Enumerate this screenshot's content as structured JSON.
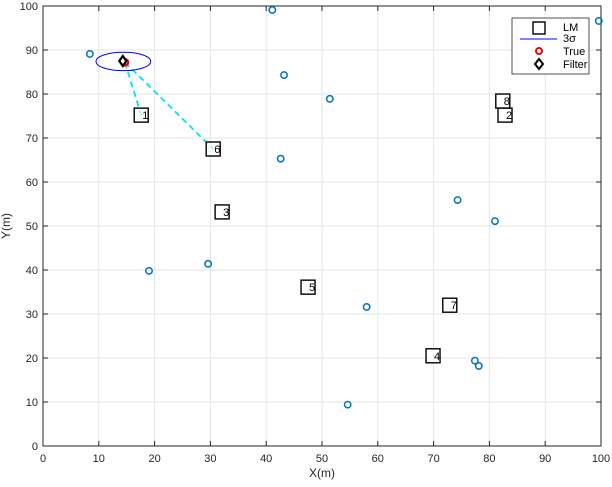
{
  "chart_data": {
    "type": "scatter",
    "title": "",
    "xlabel": "X(m)",
    "ylabel": "Y(m)",
    "xlim": [
      0,
      100
    ],
    "ylim": [
      0,
      100
    ],
    "xticks": [
      0,
      10,
      20,
      30,
      40,
      50,
      60,
      70,
      80,
      90,
      100
    ],
    "yticks": [
      0,
      10,
      20,
      30,
      40,
      50,
      60,
      70,
      80,
      90,
      100
    ],
    "grid": true,
    "legend": {
      "position": "top-right",
      "entries": [
        "LM",
        "3σ",
        "True",
        "Filter"
      ]
    },
    "landmarks": [
      {
        "id": "1",
        "x": 17.6,
        "y": 75.2
      },
      {
        "id": "2",
        "x": 82.8,
        "y": 75.2
      },
      {
        "id": "3",
        "x": 32.1,
        "y": 53.2
      },
      {
        "id": "4",
        "x": 69.9,
        "y": 20.5
      },
      {
        "id": "5",
        "x": 47.5,
        "y": 36.1
      },
      {
        "id": "6",
        "x": 30.5,
        "y": 67.5
      },
      {
        "id": "7",
        "x": 72.9,
        "y": 32.0
      },
      {
        "id": "8",
        "x": 82.4,
        "y": 78.4
      }
    ],
    "points": [
      {
        "x": 8.4,
        "y": 89.1
      },
      {
        "x": 41.1,
        "y": 99.1
      },
      {
        "x": 43.2,
        "y": 84.3
      },
      {
        "x": 51.4,
        "y": 78.9
      },
      {
        "x": 42.6,
        "y": 65.3
      },
      {
        "x": 74.3,
        "y": 55.9
      },
      {
        "x": 81.0,
        "y": 51.1
      },
      {
        "x": 19.0,
        "y": 39.8
      },
      {
        "x": 29.6,
        "y": 41.4
      },
      {
        "x": 58.0,
        "y": 31.6
      },
      {
        "x": 77.4,
        "y": 19.4
      },
      {
        "x": 78.1,
        "y": 18.2
      },
      {
        "x": 54.6,
        "y": 9.4
      },
      {
        "x": 99.6,
        "y": 96.6
      }
    ],
    "true_pose": {
      "x": 14.7,
      "y": 87.2
    },
    "filter_pose": {
      "x": 14.3,
      "y": 87.5
    },
    "covariance_ellipse": {
      "cx": 14.4,
      "cy": 87.4,
      "rx": 4.9,
      "ry": 2.1
    },
    "observations": [
      {
        "from": {
          "x": 14.7,
          "y": 87.2
        },
        "to_landmark": "1"
      },
      {
        "from": {
          "x": 14.7,
          "y": 87.2
        },
        "to_landmark": "6"
      }
    ],
    "colors": {
      "points": "#0072bd",
      "landmark": "#000000",
      "ellipse": "#0000ff",
      "true": "#ff0000",
      "filter": "#000000",
      "observation": "#00e5ee",
      "grid": "#e6e6e6"
    }
  }
}
